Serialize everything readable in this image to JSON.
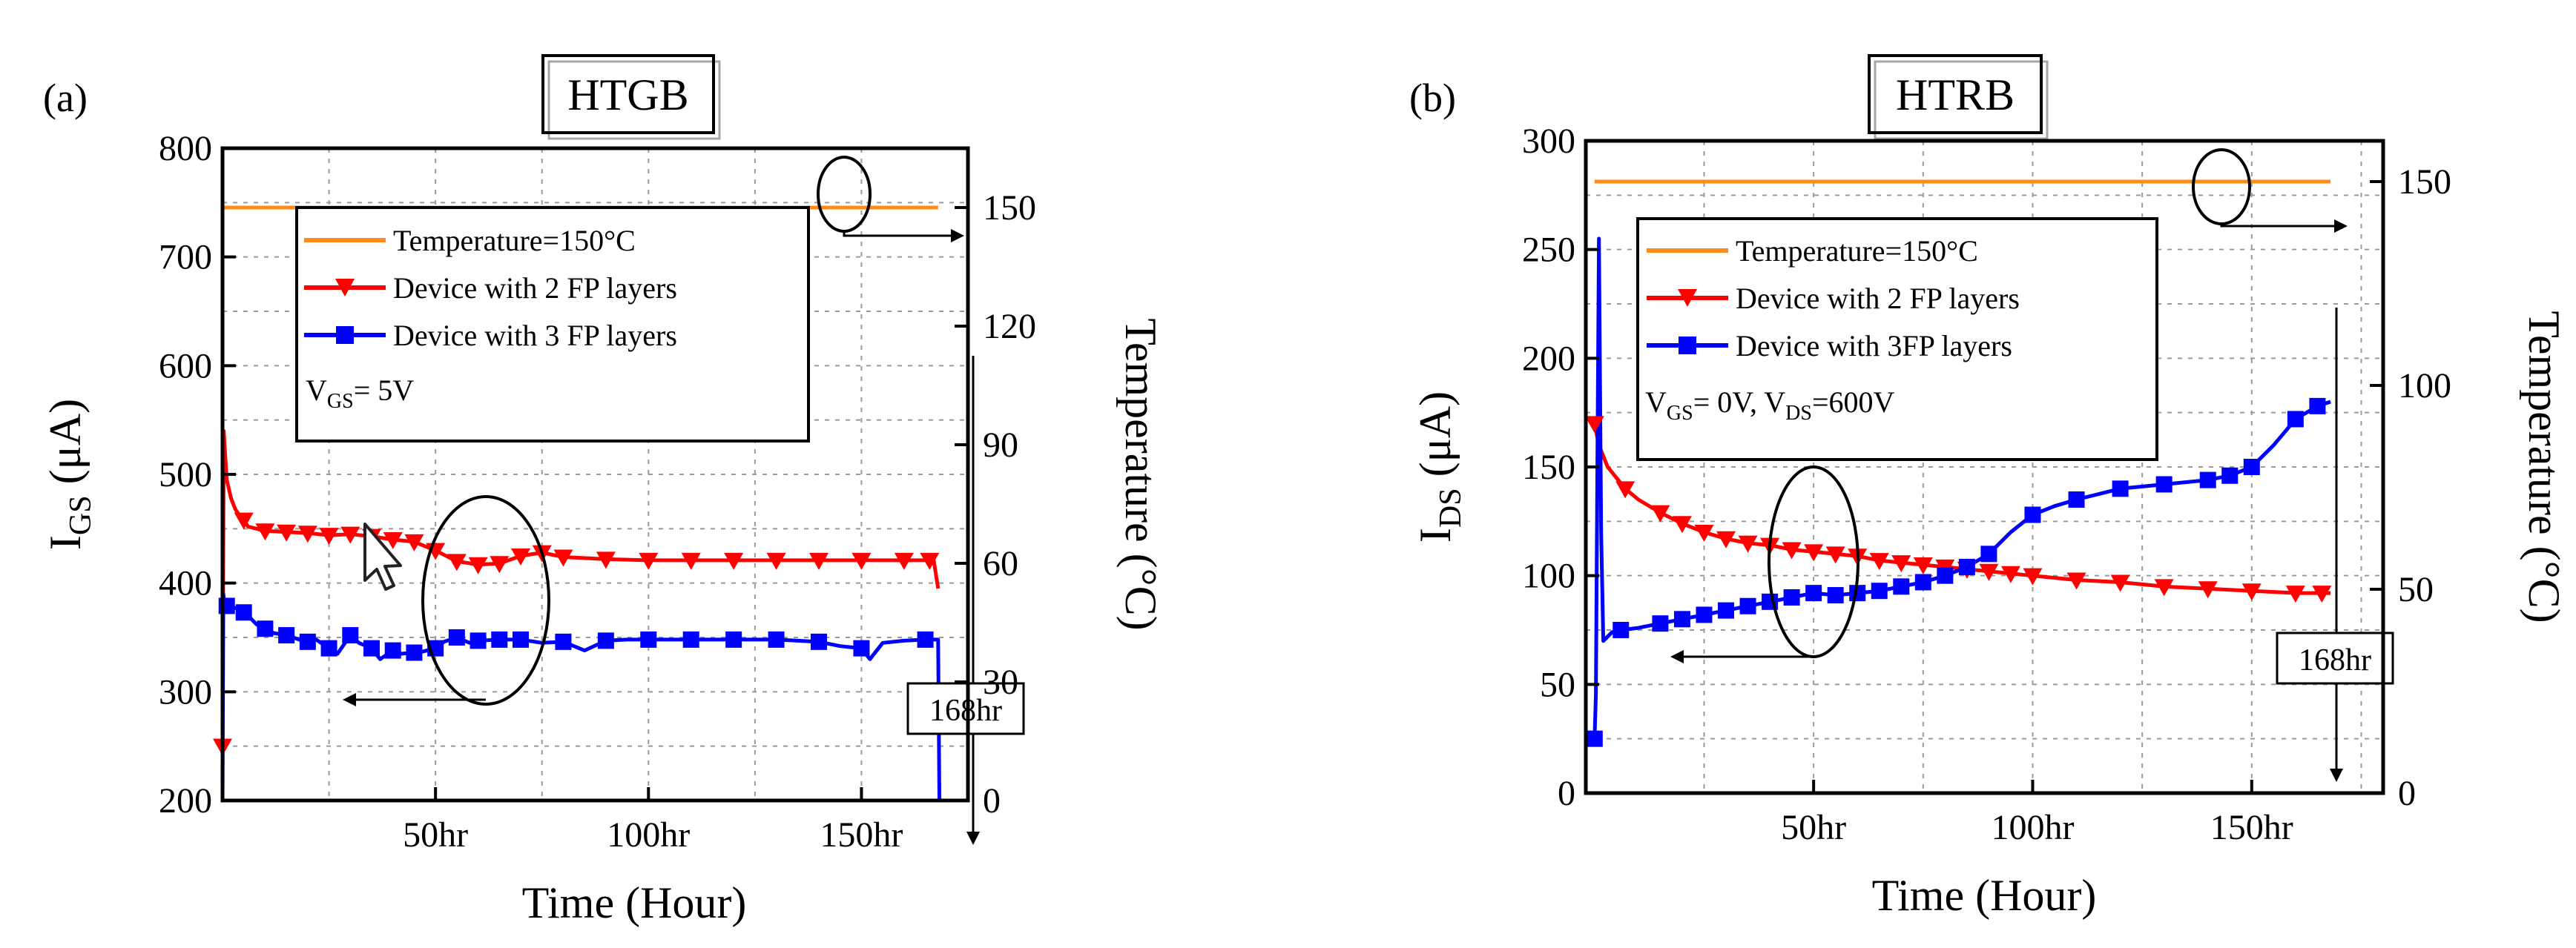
{
  "chart_data": [
    {
      "type": "line",
      "panel_label": "(a)",
      "title": "HTGB",
      "xlabel": "Time (Hour)",
      "ylabel_main": "I",
      "ylabel_sub": "GS",
      "ylabel_unit": " (μA)",
      "y2label": "Temperature (°C)",
      "xlim": [
        0,
        175
      ],
      "ylim": [
        200,
        800
      ],
      "y2lim": [
        0,
        165
      ],
      "x_ticks": [
        {
          "value": 50,
          "label": "50hr"
        },
        {
          "value": 100,
          "label": "100hr"
        },
        {
          "value": 150,
          "label": "150hr"
        }
      ],
      "y_ticks": [
        {
          "value": 200,
          "label": "200"
        },
        {
          "value": 300,
          "label": "300"
        },
        {
          "value": 400,
          "label": "400"
        },
        {
          "value": 500,
          "label": "500"
        },
        {
          "value": 600,
          "label": "600"
        },
        {
          "value": 700,
          "label": "700"
        },
        {
          "value": 800,
          "label": "800"
        }
      ],
      "y2_ticks": [
        {
          "value": 0,
          "label": "0"
        },
        {
          "value": 30,
          "label": "30"
        },
        {
          "value": 60,
          "label": "60"
        },
        {
          "value": 90,
          "label": "90"
        },
        {
          "value": 120,
          "label": "120"
        },
        {
          "value": 150,
          "label": "150"
        }
      ],
      "grid": true,
      "legend_position": "top-left",
      "legend": [
        {
          "label": "Temperature=150°C",
          "color": "#ff8c1a",
          "marker": "none"
        },
        {
          "label": "Device with 2 FP layers",
          "color": "#ff0000",
          "marker": "triangle-down"
        },
        {
          "label": "Device with 3 FP layers",
          "color": "#0000ff",
          "marker": "square"
        }
      ],
      "condition_main": "V",
      "condition_sub": "GS",
      "condition_rest": "= 5V",
      "end_annotation": "168hr",
      "end_time": 168,
      "series": [
        {
          "name": "Temperature=150°C",
          "axis": "right",
          "color": "#ff8c1a",
          "marker": "none",
          "x": [
            0,
            168
          ],
          "y": [
            150,
            150
          ]
        },
        {
          "name": "Device with 2 FP layers",
          "axis": "left",
          "color": "#ff0000",
          "marker": "triangle-down",
          "x": [
            0,
            0.3,
            0.6,
            1,
            2,
            3,
            4,
            5,
            6,
            8,
            10,
            15,
            20,
            25,
            30,
            35,
            40,
            45,
            50,
            55,
            60,
            65,
            70,
            75,
            80,
            90,
            100,
            110,
            120,
            130,
            140,
            150,
            160,
            166,
            167,
            168
          ],
          "y": [
            250,
            540,
            520,
            495,
            478,
            468,
            462,
            458,
            452,
            450,
            448,
            447,
            446,
            444,
            445,
            443,
            440,
            438,
            430,
            420,
            417,
            418,
            425,
            428,
            424,
            422,
            421,
            421,
            421,
            421,
            421,
            421,
            421,
            421,
            420,
            395
          ],
          "marker_x": [
            0,
            5,
            10,
            15,
            20,
            25,
            30,
            35,
            40,
            45,
            50,
            55,
            60,
            65,
            70,
            75,
            80,
            90,
            100,
            110,
            120,
            130,
            140,
            150,
            160,
            166
          ]
        },
        {
          "name": "Device with 3 FP layers",
          "axis": "left",
          "color": "#0000ff",
          "marker": "square",
          "x": [
            0,
            0.2,
            0.5,
            1,
            2,
            4,
            6,
            8,
            10,
            12,
            15,
            18,
            20,
            22,
            25,
            27,
            30,
            32,
            35,
            37,
            40,
            42,
            45,
            47,
            50,
            52,
            55,
            58,
            60,
            65,
            70,
            75,
            80,
            85,
            90,
            95,
            100,
            110,
            120,
            130,
            140,
            145,
            150,
            152,
            155,
            160,
            165,
            168,
            168.3
          ],
          "y": [
            200,
            390,
            380,
            379,
            378,
            376,
            370,
            362,
            358,
            354,
            352,
            348,
            346,
            348,
            340,
            335,
            352,
            345,
            340,
            330,
            338,
            335,
            336,
            337,
            340,
            346,
            350,
            345,
            347,
            348,
            348,
            345,
            346,
            338,
            347,
            348,
            348,
            348,
            348,
            348,
            346,
            342,
            340,
            330,
            345,
            347,
            348,
            348,
            200
          ],
          "marker_x": [
            1,
            5,
            10,
            15,
            20,
            25,
            30,
            35,
            40,
            45,
            50,
            55,
            60,
            65,
            70,
            80,
            90,
            100,
            110,
            120,
            130,
            140,
            150,
            165
          ]
        }
      ]
    },
    {
      "type": "line",
      "panel_label": "(b)",
      "title": "HTRB",
      "xlabel": "Time (Hour)",
      "ylabel_main": "I",
      "ylabel_sub": "DS",
      "ylabel_unit": " (μA)",
      "y2label": "Temperature (°C)",
      "xlim": [
        -2,
        180
      ],
      "ylim": [
        0,
        300
      ],
      "y2lim": [
        0,
        160
      ],
      "x_ticks": [
        {
          "value": 50,
          "label": "50hr"
        },
        {
          "value": 100,
          "label": "100hr"
        },
        {
          "value": 150,
          "label": "150hr"
        }
      ],
      "y_ticks": [
        {
          "value": 0,
          "label": "0"
        },
        {
          "value": 50,
          "label": "50"
        },
        {
          "value": 100,
          "label": "100"
        },
        {
          "value": 150,
          "label": "150"
        },
        {
          "value": 200,
          "label": "200"
        },
        {
          "value": 250,
          "label": "250"
        },
        {
          "value": 300,
          "label": "300"
        }
      ],
      "y2_ticks": [
        {
          "value": 0,
          "label": "0"
        },
        {
          "value": 50,
          "label": "50"
        },
        {
          "value": 100,
          "label": "100"
        },
        {
          "value": 150,
          "label": "150"
        }
      ],
      "grid": true,
      "legend_position": "top-left",
      "legend": [
        {
          "label": "Temperature=150°C",
          "color": "#ff8c1a",
          "marker": "none"
        },
        {
          "label": "Device with 2 FP layers",
          "color": "#ff0000",
          "marker": "triangle-down"
        },
        {
          "label": "Device with 3FP layers",
          "color": "#0000ff",
          "marker": "square"
        }
      ],
      "condition_main": "V",
      "condition_sub": "GS",
      "condition_mid": "= 0V, V",
      "condition_sub2": "DS",
      "condition_rest": "=600V",
      "end_annotation": "168hr",
      "end_time": 168,
      "series": [
        {
          "name": "Temperature=150°C",
          "axis": "right",
          "color": "#ff8c1a",
          "marker": "none",
          "x": [
            0,
            168
          ],
          "y": [
            150,
            150
          ]
        },
        {
          "name": "Device with 2 FP layers",
          "axis": "left",
          "color": "#ff0000",
          "marker": "triangle-down",
          "x": [
            0,
            1,
            2,
            3,
            5,
            7,
            10,
            15,
            20,
            25,
            30,
            35,
            40,
            45,
            50,
            55,
            60,
            65,
            70,
            75,
            80,
            85,
            90,
            95,
            100,
            110,
            120,
            130,
            140,
            150,
            160,
            168
          ],
          "y": [
            170,
            160,
            155,
            150,
            145,
            140,
            135,
            129,
            124,
            120,
            117,
            115,
            114,
            112,
            111,
            110,
            109,
            107,
            106,
            105,
            104,
            103,
            102,
            101,
            100,
            98,
            97,
            95,
            94,
            93,
            92,
            92
          ],
          "marker_x": [
            0,
            7,
            15,
            20,
            25,
            30,
            35,
            40,
            45,
            50,
            55,
            60,
            65,
            70,
            75,
            80,
            85,
            90,
            95,
            100,
            110,
            120,
            130,
            140,
            150,
            160,
            166
          ]
        },
        {
          "name": "Device with 3FP layers",
          "axis": "left",
          "color": "#0000ff",
          "marker": "square",
          "x": [
            0,
            0.3,
            0.6,
            1,
            1.5,
            2,
            3,
            4,
            6,
            10,
            15,
            20,
            25,
            30,
            35,
            40,
            45,
            50,
            55,
            60,
            65,
            70,
            75,
            80,
            85,
            90,
            95,
            100,
            105,
            110,
            120,
            130,
            140,
            145,
            150,
            155,
            160,
            165,
            168
          ],
          "y": [
            25,
            45,
            140,
            255,
            120,
            70,
            72,
            74,
            75,
            76,
            78,
            80,
            82,
            84,
            86,
            88,
            90,
            92,
            91,
            92,
            93,
            95,
            97,
            100,
            104,
            110,
            120,
            128,
            132,
            135,
            140,
            142,
            144,
            146,
            150,
            160,
            172,
            178,
            180
          ],
          "marker_x": [
            0,
            6,
            15,
            20,
            25,
            30,
            35,
            40,
            45,
            50,
            55,
            60,
            65,
            70,
            75,
            80,
            85,
            90,
            100,
            110,
            120,
            130,
            140,
            145,
            150,
            160,
            165
          ]
        }
      ]
    }
  ]
}
